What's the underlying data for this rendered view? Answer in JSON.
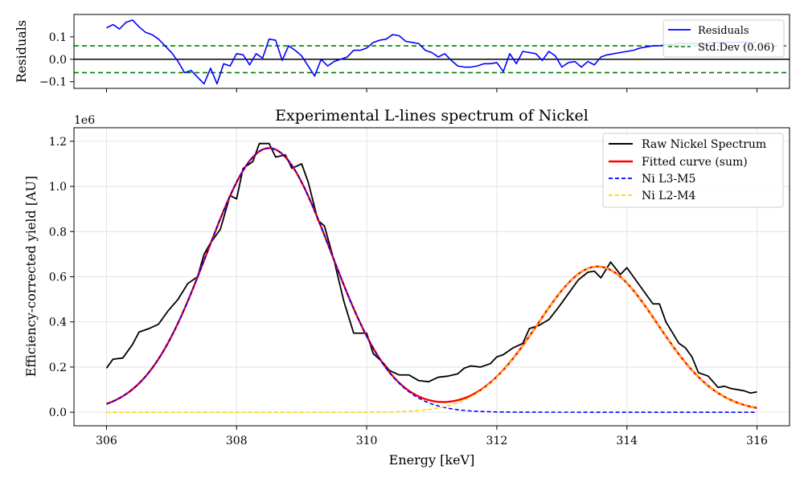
{
  "colors": {
    "raw": "#000000",
    "fit": "#ff0000",
    "l3": "#0000ff",
    "l2": "#ffd700",
    "residual": "#0000ff",
    "std": "#008000"
  },
  "residual_panel": {
    "ylabel": "Residuals",
    "legend": [
      "Residuals",
      "Std.Dev (0.06)"
    ],
    "yticks": [
      "0.1",
      "0.0",
      "−0.1"
    ]
  },
  "main_panel": {
    "title": "Experimental L-lines spectrum of Nickel",
    "xlabel": "Energy [keV]",
    "ylabel": "Efficiency-corrected yield [AU]",
    "offset_text": "1e6",
    "xticks": [
      "306",
      "308",
      "310",
      "312",
      "314",
      "316"
    ],
    "yticks": [
      "0.0",
      "0.2",
      "0.4",
      "0.6",
      "0.8",
      "1.0",
      "1.2"
    ],
    "legend": [
      "Raw Nickel Spectrum",
      "Fitted curve (sum)",
      "Ni L3-M5",
      "Ni L2-M4"
    ]
  },
  "chart_data": [
    {
      "type": "line",
      "panel": "residuals",
      "title": "",
      "xlabel": "",
      "ylabel": "Residuals",
      "xlim": [
        305.5,
        316.5
      ],
      "ylim": [
        -0.13,
        0.2
      ],
      "std_dev": 0.06,
      "zero_line": 0.0,
      "series": [
        {
          "name": "Residuals",
          "x": [
            306.0,
            306.1,
            306.2,
            306.3,
            306.4,
            306.5,
            306.6,
            306.7,
            306.8,
            306.9,
            307.0,
            307.1,
            307.2,
            307.3,
            307.4,
            307.5,
            307.6,
            307.7,
            307.8,
            307.9,
            308.0,
            308.1,
            308.2,
            308.3,
            308.4,
            308.5,
            308.6,
            308.7,
            308.8,
            308.9,
            309.0,
            309.1,
            309.2,
            309.3,
            309.4,
            309.5,
            309.6,
            309.7,
            309.8,
            309.9,
            310.0,
            310.1,
            310.2,
            310.3,
            310.4,
            310.5,
            310.6,
            310.7,
            310.8,
            310.9,
            311.0,
            311.1,
            311.2,
            311.3,
            311.4,
            311.5,
            311.6,
            311.7,
            311.8,
            311.9,
            312.0,
            312.1,
            312.2,
            312.3,
            312.4,
            312.5,
            312.6,
            312.7,
            312.8,
            312.9,
            313.0,
            313.1,
            313.2,
            313.3,
            313.4,
            313.5,
            313.6,
            313.7,
            313.8,
            313.9,
            314.0,
            314.1,
            314.2,
            314.3,
            314.4,
            314.5,
            314.6,
            314.7,
            314.8,
            314.9,
            315.0,
            315.1,
            315.2,
            315.3,
            315.4,
            315.5,
            315.6,
            315.7,
            315.8,
            315.9,
            316.0
          ],
          "y": [
            0.14,
            0.155,
            0.135,
            0.165,
            0.175,
            0.145,
            0.12,
            0.11,
            0.09,
            0.06,
            0.03,
            -0.01,
            -0.06,
            -0.05,
            -0.08,
            -0.11,
            -0.04,
            -0.11,
            -0.02,
            -0.03,
            0.025,
            0.02,
            -0.025,
            0.025,
            0.005,
            0.09,
            0.085,
            -0.005,
            0.06,
            0.04,
            0.015,
            -0.03,
            -0.075,
            0.0,
            -0.03,
            -0.01,
            0.0,
            0.01,
            0.04,
            0.04,
            0.05,
            0.075,
            0.085,
            0.09,
            0.11,
            0.105,
            0.08,
            0.075,
            0.07,
            0.04,
            0.03,
            0.01,
            0.025,
            -0.005,
            -0.03,
            -0.035,
            -0.035,
            -0.03,
            -0.02,
            -0.02,
            -0.015,
            -0.055,
            0.025,
            -0.02,
            0.035,
            0.03,
            0.025,
            -0.005,
            0.035,
            0.015,
            -0.035,
            -0.015,
            -0.01,
            -0.035,
            -0.01,
            -0.025,
            0.01,
            0.02,
            0.025,
            0.03,
            0.035,
            0.04,
            0.05,
            0.055,
            0.06,
            0.06,
            0.065,
            0.065,
            0.07,
            0.07,
            0.07,
            0.07,
            0.07,
            0.075,
            0.075,
            0.075,
            0.075,
            0.075,
            0.075,
            0.075,
            0.075
          ]
        }
      ]
    },
    {
      "type": "line",
      "panel": "main",
      "title": "Experimental L-lines spectrum of Nickel",
      "xlabel": "Energy [keV]",
      "ylabel": "Efficiency-corrected yield [AU]",
      "y_scale_factor": 1000000,
      "xlim": [
        305.5,
        316.5
      ],
      "ylim": [
        -0.06,
        1.26
      ],
      "grid": true,
      "legend_position": "top-right",
      "series": [
        {
          "name": "Raw Nickel Spectrum",
          "style": "solid",
          "x": [
            306.0,
            306.1,
            306.25,
            306.4,
            306.5,
            306.65,
            306.8,
            306.95,
            307.1,
            307.25,
            307.4,
            307.5,
            307.6,
            307.75,
            307.9,
            308.0,
            308.1,
            308.25,
            308.35,
            308.5,
            308.6,
            308.75,
            308.85,
            309.0,
            309.1,
            309.25,
            309.35,
            309.5,
            309.65,
            309.8,
            309.9,
            310.0,
            310.1,
            310.25,
            310.35,
            310.5,
            310.65,
            310.8,
            310.95,
            311.1,
            311.25,
            311.4,
            311.5,
            311.6,
            311.75,
            311.9,
            312.0,
            312.1,
            312.25,
            312.4,
            312.5,
            312.65,
            312.8,
            312.95,
            313.1,
            313.25,
            313.4,
            313.5,
            313.6,
            313.75,
            313.9,
            314.0,
            314.1,
            314.2,
            314.4,
            314.5,
            314.6,
            314.8,
            314.9,
            315.0,
            315.1,
            315.25,
            315.4,
            315.5,
            315.6,
            315.8,
            315.9,
            316.0
          ],
          "y": [
            0.195,
            0.235,
            0.24,
            0.3,
            0.355,
            0.37,
            0.39,
            0.45,
            0.5,
            0.57,
            0.6,
            0.7,
            0.75,
            0.81,
            0.96,
            0.945,
            1.08,
            1.11,
            1.19,
            1.19,
            1.13,
            1.14,
            1.08,
            1.1,
            1.02,
            0.85,
            0.825,
            0.67,
            0.49,
            0.35,
            0.35,
            0.35,
            0.26,
            0.22,
            0.185,
            0.165,
            0.165,
            0.14,
            0.135,
            0.155,
            0.16,
            0.17,
            0.195,
            0.205,
            0.2,
            0.215,
            0.245,
            0.255,
            0.285,
            0.305,
            0.37,
            0.385,
            0.41,
            0.465,
            0.525,
            0.585,
            0.62,
            0.625,
            0.595,
            0.665,
            0.61,
            0.64,
            0.6,
            0.56,
            0.48,
            0.48,
            0.4,
            0.305,
            0.285,
            0.245,
            0.175,
            0.16,
            0.11,
            0.115,
            0.105,
            0.095,
            0.085,
            0.09
          ]
        },
        {
          "name": "Fitted curve (sum)",
          "style": "solid",
          "model": "gaussian_sum",
          "components": [
            "Ni L3-M5",
            "Ni L2-M4"
          ]
        },
        {
          "name": "Ni L3-M5",
          "style": "dashed",
          "model": "gaussian",
          "amplitude": 1.17,
          "center": 308.5,
          "sigma": 0.95
        },
        {
          "name": "Ni L2-M4",
          "style": "dashed",
          "model": "gaussian",
          "amplitude": 0.645,
          "center": 313.55,
          "sigma": 0.92
        }
      ]
    }
  ]
}
